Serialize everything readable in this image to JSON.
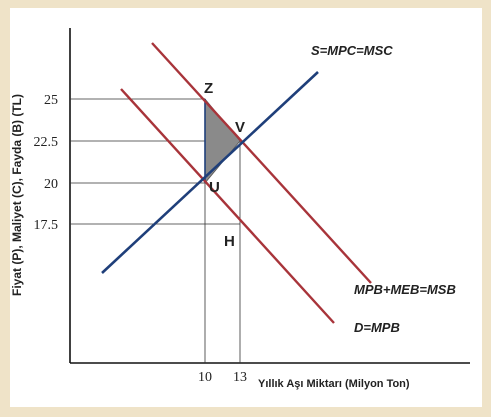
{
  "axes": {
    "y_label": "Fiyat (P), Maliyet (C), Fayda (B) (TL)",
    "x_label": "Yıllık Aşı Miktarı (Milyon Ton)",
    "y_ticks": [
      "25",
      "22.5",
      "20",
      "17.5"
    ],
    "x_ticks": [
      "10",
      "13"
    ]
  },
  "curves": {
    "supply": "S=MPC=MSC",
    "msb": "MPB+MEB=MSB",
    "demand": "D=MPB"
  },
  "points": {
    "z": "Z",
    "v": "V",
    "u": "U",
    "h": "H"
  },
  "colors": {
    "supply_line": "#1f3f7a",
    "benefit_lines": "#a8343a",
    "triangle_fill": "#8a8a8a",
    "background": "#efe3c8"
  }
}
